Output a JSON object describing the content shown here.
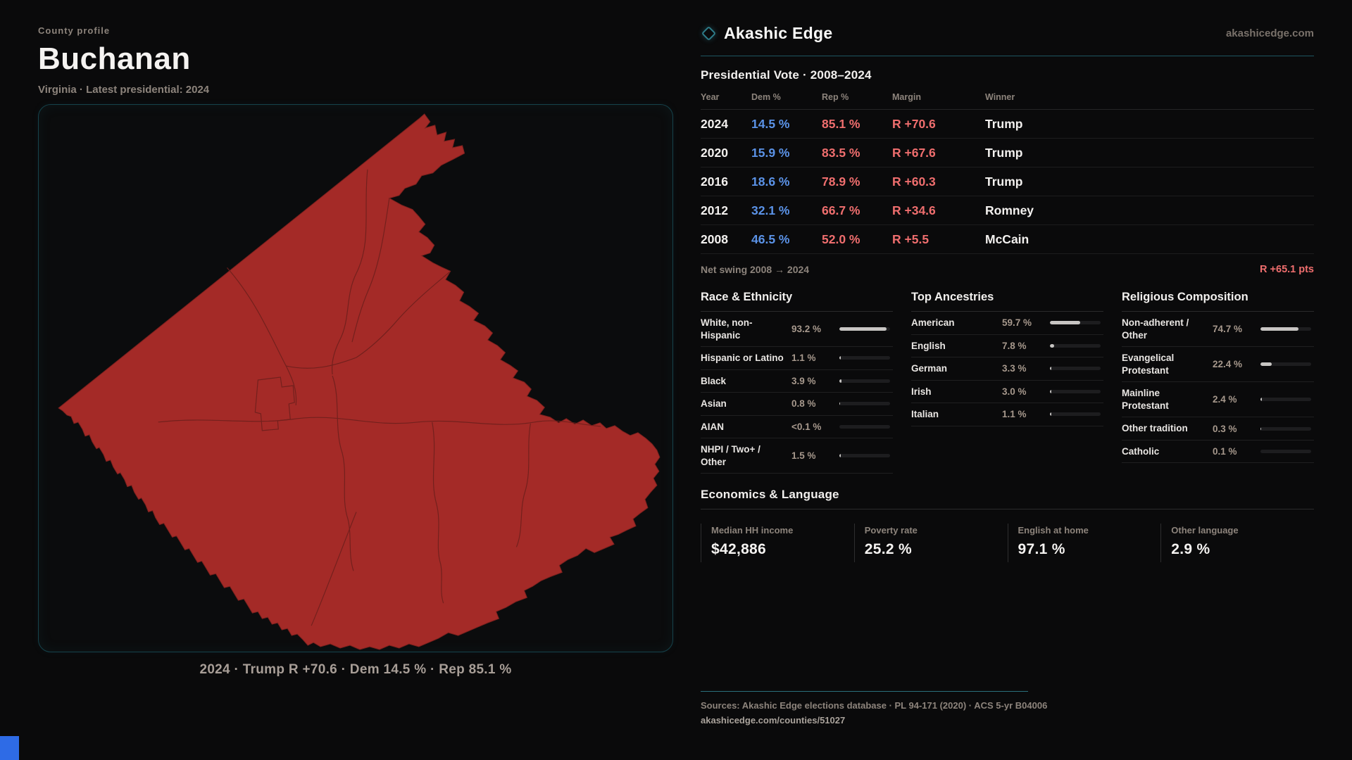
{
  "left": {
    "eyebrow": "County profile",
    "title": "Buchanan",
    "subtitle": "Virginia · Latest presidential: 2024",
    "map_caption": "2024 · Trump R +70.6 · Dem 14.5 % · Rep 85.1 %"
  },
  "brand": {
    "name": "Akashic Edge",
    "domain": "akashicedge.com",
    "icon": "diamond-outline-icon"
  },
  "vote_table": {
    "title": "Presidential Vote · 2008–2024",
    "columns": {
      "year": "Year",
      "dem": "Dem %",
      "rep": "Rep %",
      "margin": "Margin",
      "winner": "Winner"
    },
    "rows": [
      {
        "year": "2024",
        "dem": "14.5 %",
        "rep": "85.1 %",
        "margin": "R +70.6",
        "winner": "Trump"
      },
      {
        "year": "2020",
        "dem": "15.9 %",
        "rep": "83.5 %",
        "margin": "R +67.6",
        "winner": "Trump"
      },
      {
        "year": "2016",
        "dem": "18.6 %",
        "rep": "78.9 %",
        "margin": "R +60.3",
        "winner": "Trump"
      },
      {
        "year": "2012",
        "dem": "32.1 %",
        "rep": "66.7 %",
        "margin": "R +34.6",
        "winner": "Romney"
      },
      {
        "year": "2008",
        "dem": "46.5 %",
        "rep": "52.0 %",
        "margin": "R +5.5",
        "winner": "McCain"
      }
    ],
    "net_swing_label": "Net swing 2008 → 2024",
    "net_swing_value": "R +65.1 pts"
  },
  "race": {
    "title": "Race & Ethnicity",
    "rows": [
      {
        "label": "White, non-\nHispanic",
        "value": "93.2 %",
        "pct": 93.2
      },
      {
        "label": "Hispanic or Latino",
        "value": "1.1 %",
        "pct": 1.1
      },
      {
        "label": "Black",
        "value": "3.9 %",
        "pct": 3.9
      },
      {
        "label": "Asian",
        "value": "0.8 %",
        "pct": 0.8
      },
      {
        "label": "AIAN",
        "value": "<0.1 %",
        "pct": 0.05
      },
      {
        "label": "NHPI / Two+ /\nOther",
        "value": "1.5 %",
        "pct": 1.5
      }
    ]
  },
  "ancestries": {
    "title": "Top Ancestries",
    "rows": [
      {
        "label": "American",
        "value": "59.7 %",
        "pct": 59.7
      },
      {
        "label": "English",
        "value": "7.8 %",
        "pct": 7.8
      },
      {
        "label": "German",
        "value": "3.3 %",
        "pct": 3.3
      },
      {
        "label": "Irish",
        "value": "3.0 %",
        "pct": 3.0
      },
      {
        "label": "Italian",
        "value": "1.1 %",
        "pct": 1.1
      }
    ]
  },
  "religion": {
    "title": "Religious Composition",
    "rows": [
      {
        "label": "Non-adherent /\nOther",
        "value": "74.7 %",
        "pct": 74.7
      },
      {
        "label": "Evangelical\nProtestant",
        "value": "22.4 %",
        "pct": 22.4
      },
      {
        "label": "Mainline\nProtestant",
        "value": "2.4 %",
        "pct": 2.4
      },
      {
        "label": "Other tradition",
        "value": "0.3 %",
        "pct": 0.3
      },
      {
        "label": "Catholic",
        "value": "0.1 %",
        "pct": 0.1
      }
    ]
  },
  "economics": {
    "title": "Economics & Language",
    "stats": [
      {
        "label": "Median HH income",
        "value": "$42,886"
      },
      {
        "label": "Poverty rate",
        "value": "25.2 %"
      },
      {
        "label": "English at home",
        "value": "97.1 %"
      },
      {
        "label": "Other language",
        "value": "2.9 %"
      }
    ]
  },
  "footer": {
    "sources": "Sources: Akashic Edge elections database · PL 94-171 (2020) · ACS 5-yr B04006",
    "permalink": "akashicedge.com/counties/51027"
  },
  "colors": {
    "accent_teal": "#2a6f7c",
    "dem_blue": "#5b93e8",
    "rep_red": "#ef6e6e",
    "county_fill": "#a42a27",
    "bar_fill": "#c7c5c3",
    "artifact_blue": "#2e6be6"
  },
  "chart_data": {
    "type": "table",
    "title": "Presidential Vote · 2008–2024",
    "categories": [
      2008,
      2012,
      2016,
      2020,
      2024
    ],
    "series": [
      {
        "name": "Dem %",
        "values": [
          46.5,
          32.1,
          18.6,
          15.9,
          14.5
        ]
      },
      {
        "name": "Rep %",
        "values": [
          52.0,
          66.7,
          78.9,
          83.5,
          85.1
        ]
      },
      {
        "name": "R margin",
        "values": [
          5.5,
          34.6,
          60.3,
          67.6,
          70.6
        ]
      }
    ],
    "winners": [
      "McCain",
      "Romney",
      "Trump",
      "Trump",
      "Trump"
    ]
  }
}
